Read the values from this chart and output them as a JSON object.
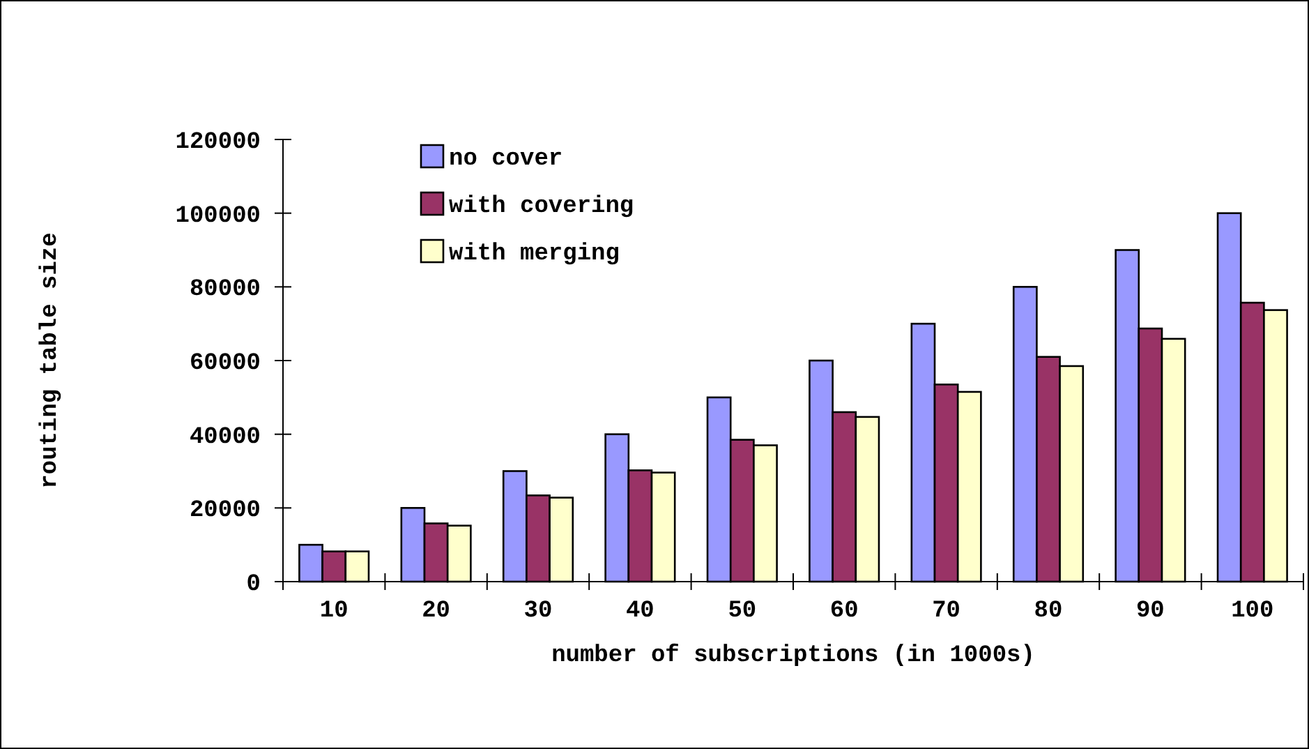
{
  "chart_data": {
    "type": "bar",
    "xlabel": "number of subscriptions (in 1000s)",
    "ylabel": "routing table size",
    "categories": [
      "10",
      "20",
      "30",
      "40",
      "50",
      "60",
      "70",
      "80",
      "90",
      "100"
    ],
    "series": [
      {
        "name": "no cover",
        "color": "#9999ff",
        "values": [
          10000,
          20000,
          30000,
          40000,
          50000,
          60000,
          70000,
          80000,
          90000,
          100000
        ]
      },
      {
        "name": "with covering",
        "color": "#993366",
        "values": [
          8200,
          15800,
          23400,
          30200,
          38500,
          46000,
          53500,
          61000,
          68700,
          75700
        ]
      },
      {
        "name": "with merging",
        "color": "#ffffcc",
        "values": [
          8200,
          15200,
          22800,
          29600,
          37000,
          44700,
          51500,
          58500,
          65900,
          73700
        ]
      }
    ],
    "ylim": [
      0,
      120000
    ],
    "yticks": [
      0,
      20000,
      40000,
      60000,
      80000,
      100000,
      120000
    ],
    "grid": false,
    "legend": "top left"
  }
}
